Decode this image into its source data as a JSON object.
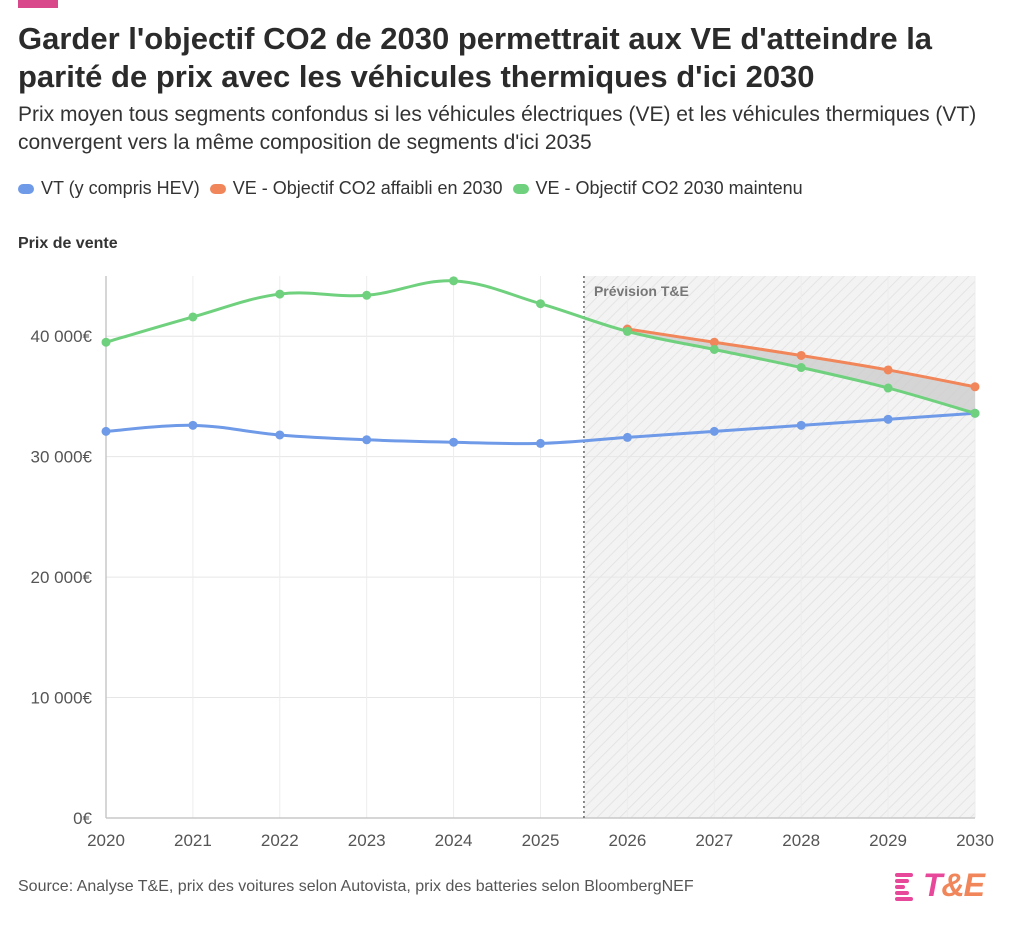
{
  "colors": {
    "accent": "#d9488b",
    "vt": "#6f9ae8",
    "ve_weak": "#f0865a",
    "ve_kept": "#6fd17d",
    "grid": "#e6e6e6",
    "axis": "#c8c8c8",
    "forecast_band": "#f3f3f3",
    "gap_fill": "#cfcfcf",
    "logo_pink": "#e8489a",
    "logo_orange": "#f0865a"
  },
  "header": {
    "title": "Garder l'objectif CO2 de 2030 permettrait aux VE d'atteindre la parité de prix avec les véhicules thermiques d'ici 2030",
    "subtitle": "Prix moyen tous segments confondus si les véhicules électriques (VE) et les véhicules thermiques (VT) convergent vers la même composition de segments d'ici 2035"
  },
  "legend": [
    {
      "label": "VT (y compris HEV)",
      "color": "#6f9ae8"
    },
    {
      "label": "VE - Objectif CO2 affaibli en 2030",
      "color": "#f0865a"
    },
    {
      "label": "VE - Objectif CO2 2030 maintenu",
      "color": "#6fd17d"
    }
  ],
  "footer": {
    "source": "Source: Analyse T&E, prix des voitures selon Autovista, prix des batteries selon BloombergNEF",
    "logo_text": "T&E"
  },
  "chart_data": {
    "type": "line",
    "ylabel": "Prix de vente",
    "x": [
      2020,
      2021,
      2022,
      2023,
      2024,
      2025,
      2026,
      2027,
      2028,
      2029,
      2030
    ],
    "xlim": [
      2020,
      2030
    ],
    "ylim": [
      0,
      45000
    ],
    "yticks": [
      0,
      10000,
      20000,
      30000,
      40000
    ],
    "ytick_labels": [
      "0€",
      "10 000€",
      "20 000€",
      "30 000€",
      "40 000€"
    ],
    "xtick_labels": [
      "2020",
      "2021",
      "2022",
      "2023",
      "2024",
      "2025",
      "2026",
      "2027",
      "2028",
      "2029",
      "2030"
    ],
    "grid": true,
    "forecast": {
      "start": 2025.5,
      "label": "Prévision T&E"
    },
    "series": [
      {
        "name": "VT (y compris HEV)",
        "color": "#6f9ae8",
        "x": [
          2020,
          2021,
          2022,
          2023,
          2024,
          2025,
          2026,
          2027,
          2028,
          2029,
          2030
        ],
        "values": [
          32100,
          32600,
          31800,
          31400,
          31200,
          31100,
          31600,
          32100,
          32600,
          33100,
          33600
        ]
      },
      {
        "name": "VE - Objectif CO2 affaibli en 2030",
        "color": "#f0865a",
        "x": [
          2026,
          2027,
          2028,
          2029,
          2030
        ],
        "values": [
          40600,
          39500,
          38400,
          37200,
          35800
        ]
      },
      {
        "name": "VE - Objectif CO2 2030 maintenu",
        "color": "#6fd17d",
        "x": [
          2020,
          2021,
          2022,
          2023,
          2024,
          2025,
          2026,
          2027,
          2028,
          2029,
          2030
        ],
        "values": [
          39500,
          41600,
          43500,
          43400,
          44600,
          42700,
          40400,
          38900,
          37400,
          35700,
          33600
        ]
      }
    ]
  }
}
